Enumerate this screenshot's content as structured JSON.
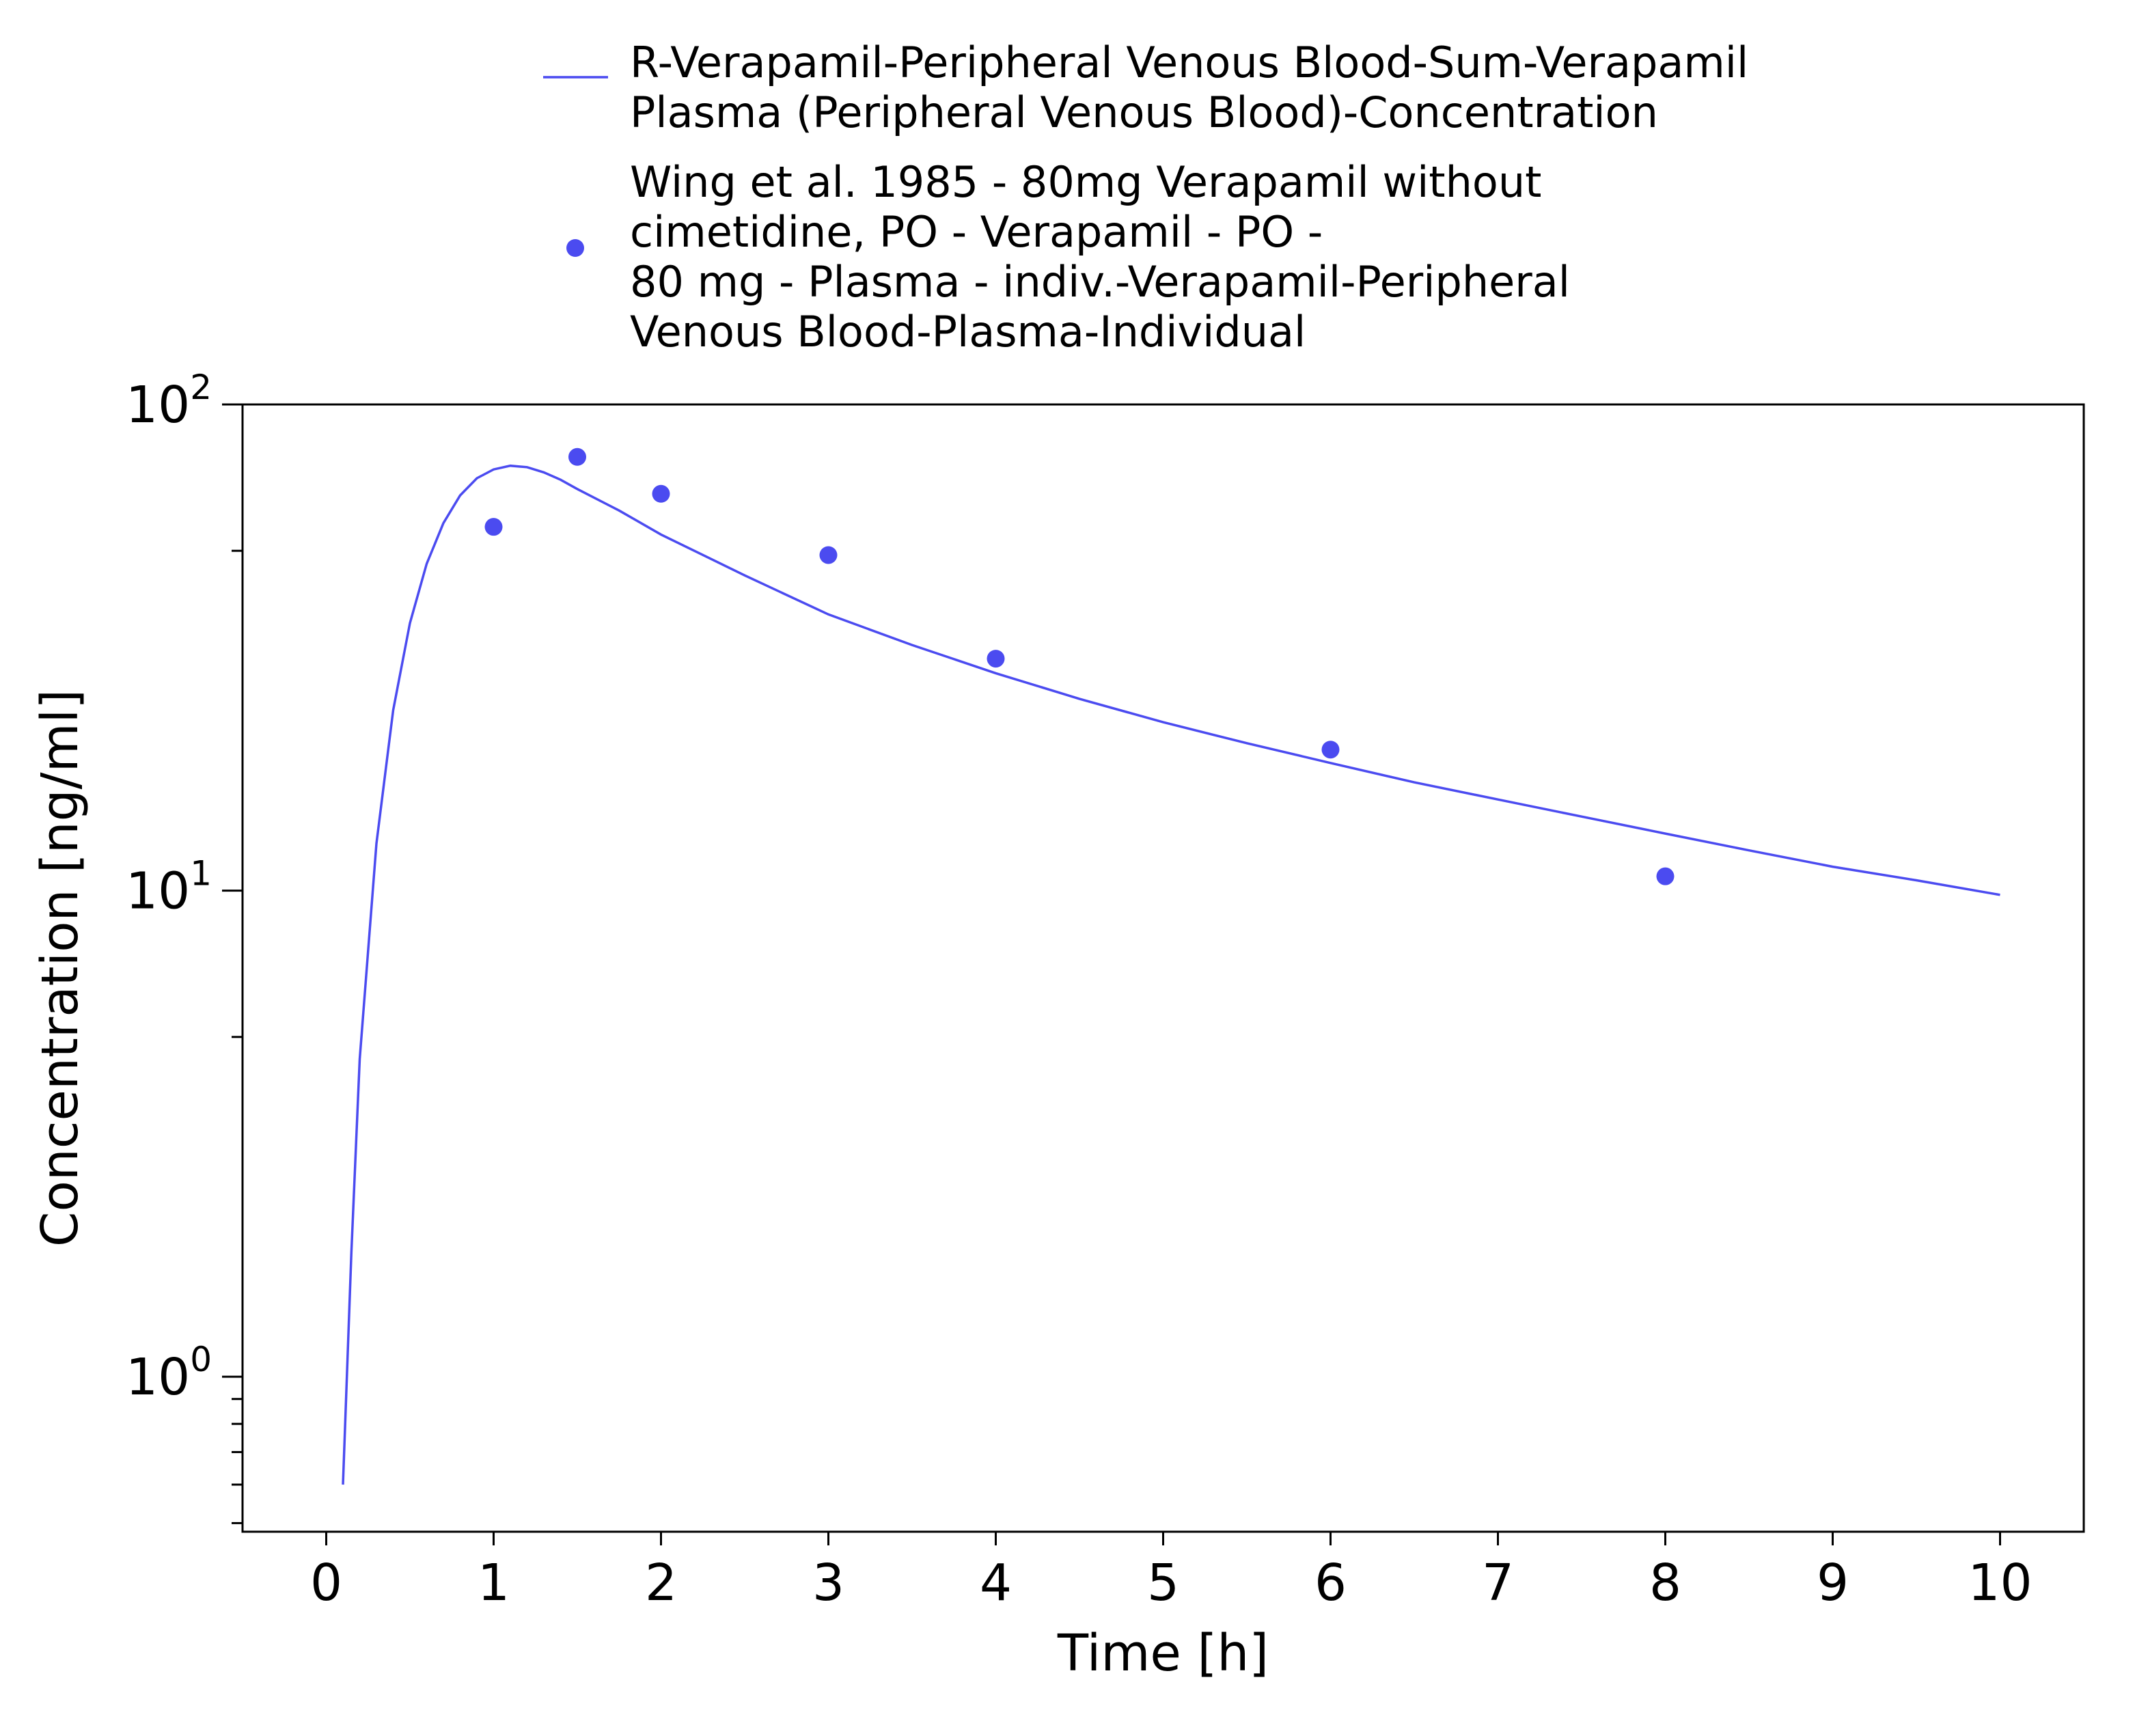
{
  "chart_data": {
    "type": "line",
    "title": "",
    "xlabel": "Time [h]",
    "ylabel": "Concentration [ng/ml]",
    "x_scale": "linear",
    "y_scale": "log",
    "xlim": [
      -0.5,
      10.5
    ],
    "ylim": [
      0.48,
      100
    ],
    "x_ticks": [
      0,
      1,
      2,
      3,
      4,
      5,
      6,
      7,
      8,
      9,
      10
    ],
    "y_ticks": [
      {
        "value": 1,
        "base": "10",
        "exp": "0"
      },
      {
        "value": 10,
        "base": "10",
        "exp": "1"
      },
      {
        "value": 100,
        "base": "10",
        "exp": "2"
      }
    ],
    "grid": false,
    "legend_position": "top",
    "series": [
      {
        "name": "R-Verapamil-Peripheral Venous Blood-Sum-Verapamil Plasma (Peripheral Venous Blood)-Concentration",
        "legend_lines": [
          "R-Verapamil-Peripheral Venous Blood-Sum-Verapamil",
          "Plasma (Peripheral Venous Blood)-Concentration"
        ],
        "kind": "line",
        "color": "#4b4bf0",
        "x": [
          0.1,
          0.15,
          0.2,
          0.3,
          0.4,
          0.5,
          0.6,
          0.7,
          0.8,
          0.9,
          1.0,
          1.1,
          1.2,
          1.3,
          1.4,
          1.5,
          1.75,
          2.0,
          2.5,
          3.0,
          3.5,
          4.0,
          4.5,
          5.0,
          5.5,
          6.0,
          6.5,
          7.0,
          7.5,
          8.0,
          8.5,
          9.0,
          9.5,
          10.0
        ],
        "y": [
          0.6,
          1.8,
          4.5,
          12.5,
          23.5,
          35.5,
          47.0,
          57.0,
          65.0,
          70.5,
          73.5,
          74.8,
          74.3,
          72.5,
          70.0,
          67.0,
          60.5,
          54.0,
          44.5,
          37.0,
          32.0,
          28.0,
          24.8,
          22.2,
          20.1,
          18.3,
          16.7,
          15.4,
          14.2,
          13.1,
          12.1,
          11.2,
          10.5,
          9.8
        ]
      },
      {
        "name": "Wing et al. 1985 - 80mg Verapamil without cimetidine, PO - Verapamil - PO - 80 mg - Plasma - indiv.-Verapamil-Peripheral Venous Blood-Plasma-Individual",
        "legend_lines": [
          "Wing et al. 1985 - 80mg Verapamil without",
          "cimetidine, PO - Verapamil - PO -",
          "80 mg - Plasma - indiv.-Verapamil-Peripheral",
          "Venous Blood-Plasma-Individual"
        ],
        "kind": "scatter",
        "color": "#4b4bf0",
        "x": [
          1.0,
          1.5,
          2.0,
          3.0,
          4.0,
          6.0,
          8.0
        ],
        "y": [
          56.0,
          78.0,
          65.5,
          49.0,
          30.0,
          19.5,
          10.7
        ]
      }
    ]
  }
}
